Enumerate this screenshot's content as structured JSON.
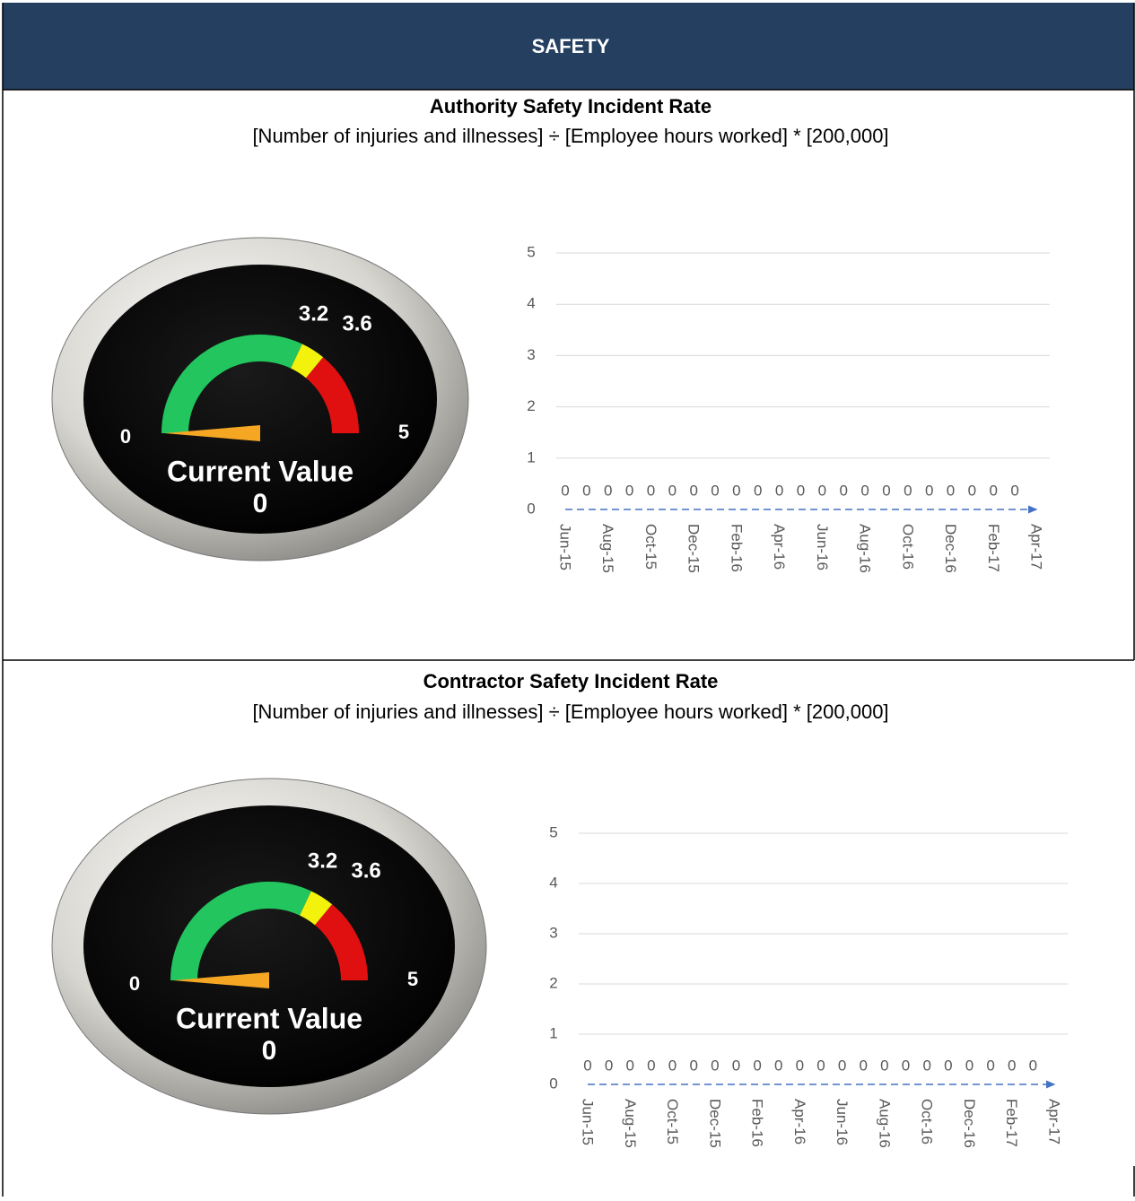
{
  "header": {
    "title": "SAFETY"
  },
  "sections": [
    {
      "title": "Authority Safety Incident Rate",
      "subtitle": "[Number of injuries and illnesses] ÷ [Employee hours worked] * [200,000]",
      "gauge": {
        "min": 0,
        "max": 5,
        "thresholds": [
          3.2,
          3.6
        ],
        "current_label": "Current Value",
        "current": 0
      },
      "chart": {
        "type": "line",
        "categories": [
          "Jun-15",
          null,
          "Aug-15",
          null,
          "Oct-15",
          null,
          "Dec-15",
          null,
          "Feb-16",
          null,
          "Apr-16",
          null,
          "Jun-16",
          null,
          "Aug-16",
          null,
          "Oct-16",
          null,
          "Dec-16",
          null,
          "Feb-17",
          null,
          "Apr-17"
        ],
        "values": [
          0,
          0,
          0,
          0,
          0,
          0,
          0,
          0,
          0,
          0,
          0,
          0,
          0,
          0,
          0,
          0,
          0,
          0,
          0,
          0,
          0,
          0,
          0
        ],
        "color": "#4472c4",
        "ylim": [
          0,
          5
        ],
        "yticks": [
          0,
          1,
          2,
          3,
          4,
          5
        ],
        "grid": true
      }
    },
    {
      "title": "Contractor Safety Incident Rate",
      "subtitle": "[Number of injuries and illnesses] ÷ [Employee hours worked] * [200,000]",
      "gauge": {
        "min": 0,
        "max": 5,
        "thresholds": [
          3.2,
          3.6
        ],
        "current_label": "Current Value",
        "current": 0
      },
      "chart": {
        "type": "line",
        "categories": [
          "Jun-15",
          null,
          "Aug-15",
          null,
          "Oct-15",
          null,
          "Dec-15",
          null,
          "Feb-16",
          null,
          "Apr-16",
          null,
          "Jun-16",
          null,
          "Aug-16",
          null,
          "Oct-16",
          null,
          "Dec-16",
          null,
          "Feb-17",
          null,
          "Apr-17"
        ],
        "values": [
          0,
          0,
          0,
          0,
          0,
          0,
          0,
          0,
          0,
          0,
          0,
          0,
          0,
          0,
          0,
          0,
          0,
          0,
          0,
          0,
          0,
          0,
          0
        ],
        "color": "#4472c4",
        "ylim": [
          0,
          5
        ],
        "yticks": [
          0,
          1,
          2,
          3,
          4,
          5
        ],
        "grid": true
      }
    }
  ]
}
